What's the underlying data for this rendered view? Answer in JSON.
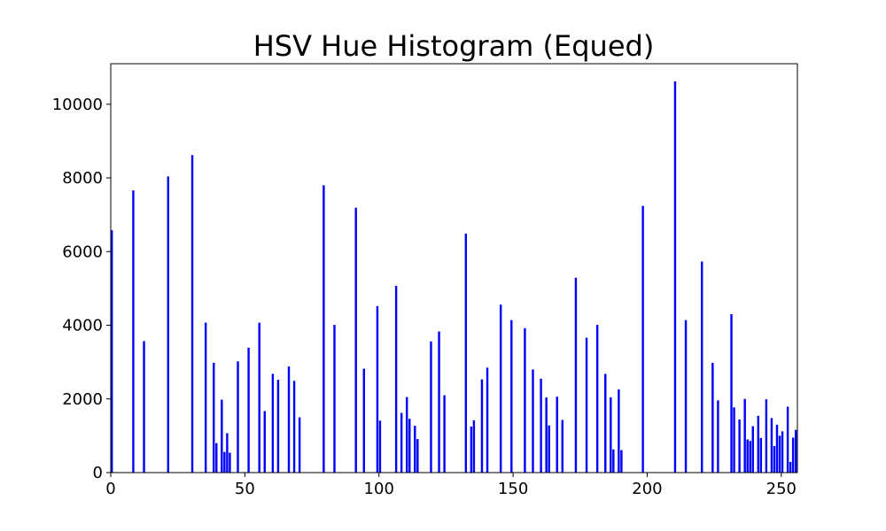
{
  "chart_data": {
    "type": "bar",
    "title": "HSV Hue Histogram (Equed)",
    "xlabel": "",
    "ylabel": "",
    "xlim": [
      0,
      256
    ],
    "ylim": [
      0,
      11100
    ],
    "x_ticks": [
      0,
      50,
      100,
      150,
      200,
      250
    ],
    "y_ticks": [
      0,
      2000,
      4000,
      6000,
      8000,
      10000
    ],
    "grid": false,
    "bar_color": "#0000ff",
    "series": [
      {
        "x": [
          0,
          8,
          12,
          21,
          30,
          35,
          38,
          39,
          41,
          42,
          43,
          44,
          47,
          51,
          55,
          57,
          60,
          62,
          66,
          68,
          70,
          79,
          83,
          91,
          94,
          99,
          100,
          106,
          108,
          110,
          111,
          113,
          114,
          119,
          122,
          124,
          132,
          134,
          135,
          138,
          140,
          145,
          149,
          154,
          157,
          160,
          162,
          163,
          166,
          168,
          173,
          177,
          181,
          184,
          186,
          187,
          189,
          190,
          198,
          210,
          214,
          220,
          224,
          226,
          231,
          232,
          234,
          236,
          237,
          238,
          239,
          241,
          242,
          244,
          246,
          247,
          248,
          249,
          250,
          252,
          253,
          254,
          255
        ],
        "values": [
          6580,
          7660,
          3570,
          8040,
          8620,
          4070,
          2980,
          800,
          1980,
          560,
          1070,
          540,
          3020,
          3390,
          4070,
          1670,
          2680,
          2520,
          2880,
          2490,
          1500,
          7800,
          4010,
          7190,
          2820,
          4520,
          1410,
          5070,
          1620,
          2050,
          1460,
          1270,
          910,
          3560,
          3830,
          2100,
          6490,
          1250,
          1420,
          2530,
          2850,
          4560,
          4140,
          3920,
          2800,
          2550,
          2040,
          1280,
          2060,
          1430,
          5290,
          3660,
          4010,
          2680,
          2040,
          630,
          2260,
          610,
          7240,
          10620,
          4140,
          5730,
          2980,
          1960,
          4300,
          1770,
          1440,
          2000,
          900,
          860,
          1260,
          1540,
          940,
          1990,
          1480,
          720,
          1300,
          1000,
          1120,
          1790,
          290,
          950,
          1160
        ]
      }
    ]
  }
}
